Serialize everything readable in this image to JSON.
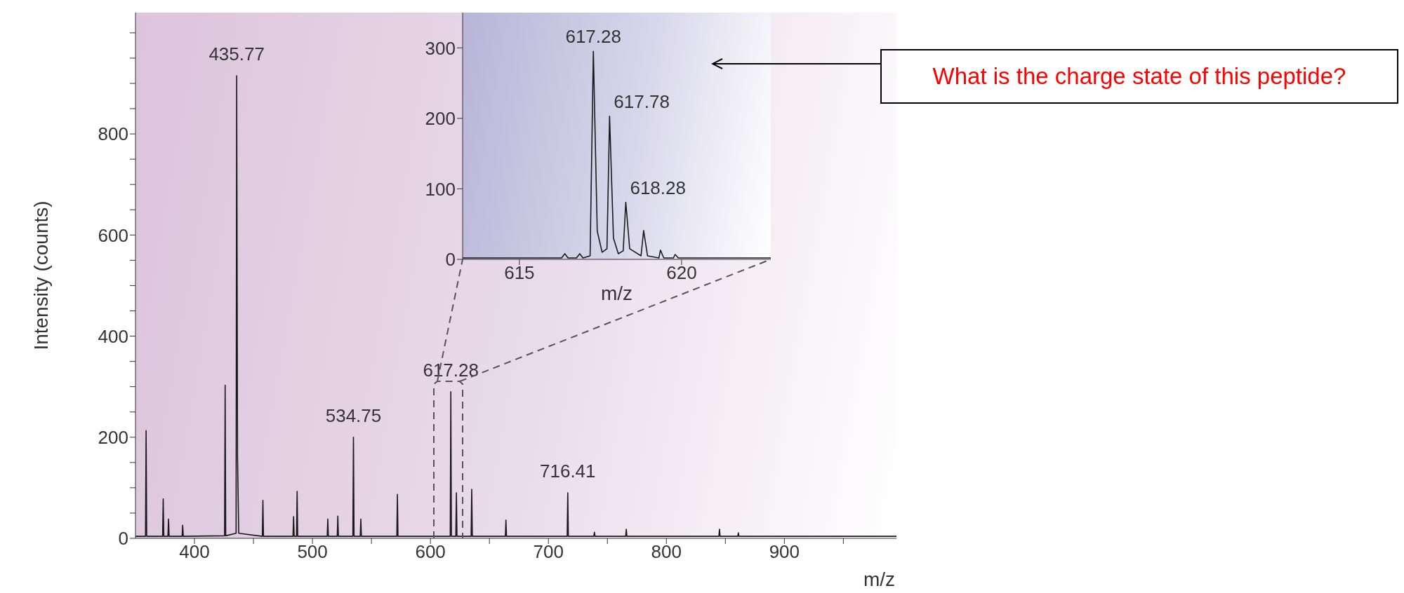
{
  "chart_data": [
    {
      "type": "line",
      "xlabel": "m/z",
      "ylabel": "Intensity (counts)",
      "series": [
        {
          "color": "#1a1a1a",
          "x": [
            350,
            358.5,
            359,
            359.5,
            373,
            373.5,
            374,
            377.5,
            378,
            378.5,
            389.5,
            390,
            390.5,
            425.5,
            426,
            426.5,
            435.27,
            435.77,
            436.5,
            437.5,
            457.5,
            458,
            458.5,
            483.5,
            484,
            484.5,
            486.5,
            487,
            487.5,
            512.5,
            513,
            513.5,
            521,
            521.5,
            522,
            534.25,
            534.75,
            535.25,
            540.5,
            541,
            541.5,
            571.5,
            572,
            572.5,
            616.78,
            617.28,
            617.78,
            621.5,
            622,
            622.5,
            634.5,
            635,
            635.5,
            663.5,
            664,
            664.5,
            715.91,
            716.41,
            716.91,
            738.5,
            739,
            739.5,
            765.5,
            766,
            766.5,
            844.5,
            845,
            845.5,
            860.5,
            861,
            861.5,
            995
          ],
          "values": [
            4,
            4,
            213,
            4,
            4,
            78,
            4,
            4,
            38,
            4,
            4,
            26,
            4,
            5,
            303,
            5,
            10,
            915,
            160,
            10,
            4,
            75,
            4,
            4,
            43,
            4,
            4,
            93,
            4,
            4,
            38,
            4,
            4,
            44,
            4,
            4,
            200,
            4,
            4,
            38,
            4,
            4,
            87,
            4,
            4,
            290,
            4,
            4,
            90,
            4,
            4,
            97,
            4,
            4,
            36,
            4,
            4,
            90,
            4,
            4,
            12,
            4,
            4,
            18,
            4,
            4,
            18,
            4,
            4,
            11,
            4,
            4
          ]
        }
      ],
      "xlim": [
        350,
        995
      ],
      "xticks": [
        400,
        {
          "value": 450,
          "label": null
        },
        500,
        {
          "value": 550,
          "label": null
        },
        600,
        {
          "value": 650,
          "label": null
        },
        700,
        {
          "value": 750,
          "label": null
        },
        800,
        {
          "value": 850,
          "label": null
        },
        900,
        {
          "value": 950,
          "label": null
        }
      ],
      "ylim": [
        0,
        1040
      ],
      "yticks": [
        0,
        {
          "value": 50,
          "label": null
        },
        {
          "value": 100,
          "label": null
        },
        {
          "value": 150,
          "label": null
        },
        200,
        {
          "value": 250,
          "label": null
        },
        {
          "value": 300,
          "label": null
        },
        {
          "value": 350,
          "label": null
        },
        400,
        {
          "value": 450,
          "label": null
        },
        {
          "value": 500,
          "label": null
        },
        {
          "value": 550,
          "label": null
        },
        600,
        {
          "value": 650,
          "label": null
        },
        {
          "value": 700,
          "label": null
        },
        {
          "value": 750,
          "label": null
        },
        800,
        {
          "value": 850,
          "label": null
        },
        {
          "value": 900,
          "label": null
        },
        {
          "value": 950,
          "label": null
        },
        {
          "value": 1000,
          "label": null
        }
      ],
      "marker": "none",
      "annotations": [
        {
          "text": "435.77",
          "x": 435.77,
          "y": 915
        },
        {
          "text": "534.75",
          "x": 534.75,
          "y": 200
        },
        {
          "text": "617.28",
          "x": 617.28,
          "y": 290
        },
        {
          "text": "716.41",
          "x": 716.41,
          "y": 90
        },
        "What is the charge state of this peptide?"
      ]
    },
    {
      "type": "line",
      "xlabel": "m/z",
      "series": [
        {
          "color": "#1a1a1a",
          "x": [
            613.25,
            616.3,
            616.4,
            616.5,
            616.76,
            616.86,
            616.96,
            617.18,
            617.28,
            617.4,
            617.55,
            617.7,
            617.78,
            617.9,
            618.05,
            618.2,
            618.28,
            618.4,
            618.75,
            618.83,
            618.95,
            619.3,
            619.35,
            619.45,
            619.75,
            619.8,
            619.9,
            622.75
          ],
          "values": [
            2,
            2,
            8,
            2,
            2,
            8,
            2,
            5,
            295,
            40,
            10,
            15,
            203,
            30,
            8,
            12,
            81,
            15,
            5,
            41,
            5,
            2,
            13,
            2,
            2,
            7,
            2,
            2
          ]
        }
      ],
      "xlim": [
        613.25,
        622.75
      ],
      "xticks": [
        615,
        620
      ],
      "ylim": [
        0,
        350
      ],
      "yticks": [
        0,
        100,
        200,
        300
      ],
      "marker": "none",
      "annotations": [
        {
          "text": "617.28",
          "x": 617.28,
          "y": 295
        },
        {
          "text": "617.78",
          "x": 617.78,
          "y": 203
        },
        {
          "text": "618.28",
          "x": 618.28,
          "y": 81
        }
      ]
    }
  ]
}
